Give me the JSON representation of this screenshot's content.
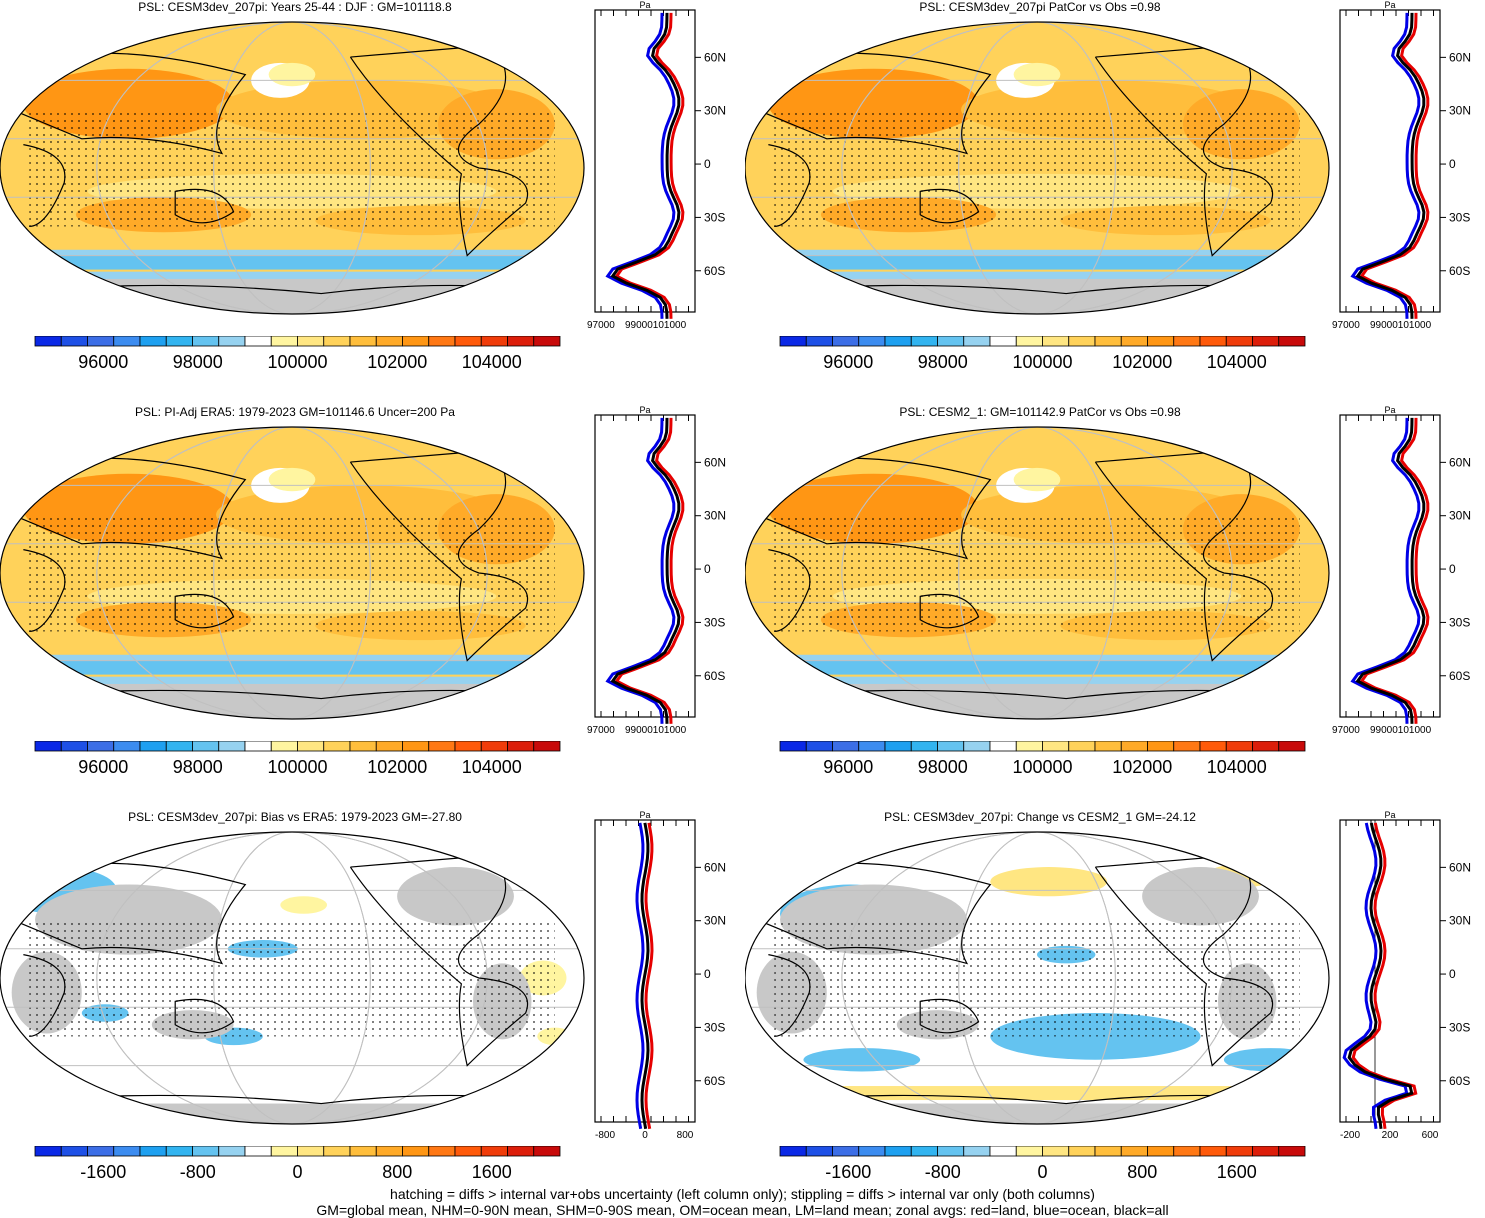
{
  "chart_data": [
    {
      "type": "heatmap",
      "title": "PSL: CESM3dev_207pi: Years 25-44 : DJF : GM=101118.8",
      "colorbar_ticks": [
        "96000",
        "98000",
        "100000",
        "102000",
        "104000"
      ],
      "zonal_axis_lat": [
        "60N",
        "30N",
        "0",
        "30S",
        "60S"
      ],
      "zonal_axis_x": [
        "97000",
        "99000101000"
      ],
      "zonal_axis_unit": "Pa",
      "zonal_kind": "abs",
      "zonal_xlim": [
        97000,
        103000
      ]
    },
    {
      "type": "heatmap",
      "title": "PSL: CESM3dev_207pi PatCor vs Obs =0.98",
      "colorbar_ticks": [
        "96000",
        "98000",
        "100000",
        "102000",
        "104000"
      ],
      "zonal_axis_lat": [
        "60N",
        "30N",
        "0",
        "30S",
        "60S"
      ],
      "zonal_axis_x": [
        "97000",
        "99000101000"
      ],
      "zonal_axis_unit": "Pa",
      "zonal_kind": "abs",
      "zonal_xlim": [
        97000,
        103000
      ]
    },
    {
      "type": "heatmap",
      "title": "PSL: PI-Adj ERA5: 1979-2023 GM=101146.6 Uncer=200 Pa",
      "colorbar_ticks": [
        "96000",
        "98000",
        "100000",
        "102000",
        "104000"
      ],
      "zonal_axis_lat": [
        "60N",
        "30N",
        "0",
        "30S",
        "60S"
      ],
      "zonal_axis_x": [
        "97000",
        "99000101000"
      ],
      "zonal_axis_unit": "Pa",
      "zonal_kind": "abs",
      "zonal_xlim": [
        97000,
        103000
      ]
    },
    {
      "type": "heatmap",
      "title": "PSL: CESM2_1: GM=101142.9 PatCor vs Obs =0.98",
      "colorbar_ticks": [
        "96000",
        "98000",
        "100000",
        "102000",
        "104000"
      ],
      "zonal_axis_lat": [
        "60N",
        "30N",
        "0",
        "30S",
        "60S"
      ],
      "zonal_axis_x": [
        "97000",
        "99000101000"
      ],
      "zonal_axis_unit": "Pa",
      "zonal_kind": "abs",
      "zonal_xlim": [
        97000,
        103000
      ]
    },
    {
      "type": "heatmap",
      "title": "PSL: CESM3dev_207pi: Bias vs ERA5: 1979-2023 GM=-27.80",
      "colorbar_ticks": [
        "-1600",
        "-800",
        "0",
        "800",
        "1600"
      ],
      "zonal_axis_lat": [
        "60N",
        "30N",
        "0",
        "30S",
        "60S"
      ],
      "zonal_axis_x": [
        "-800",
        "0",
        "800"
      ],
      "zonal_axis_unit": "Pa",
      "zonal_kind": "bias",
      "zonal_xlim": [
        -1000,
        1000
      ]
    },
    {
      "type": "heatmap",
      "title": "PSL: CESM3dev_207pi: Change vs CESM2_1 GM=-24.12",
      "colorbar_ticks": [
        "-1600",
        "-800",
        "0",
        "800",
        "1600"
      ],
      "zonal_axis_lat": [
        "60N",
        "30N",
        "0",
        "30S",
        "60S"
      ],
      "zonal_axis_x": [
        "-200",
        "200",
        "600"
      ],
      "zonal_axis_unit": "Pa",
      "zonal_kind": "change",
      "zonal_xlim": [
        -300,
        700
      ]
    }
  ],
  "colors": {
    "scale": [
      "#0a28e6",
      "#1e50e6",
      "#3c6ee6",
      "#3c8cf0",
      "#1ea0f0",
      "#32b4f0",
      "#64c3f0",
      "#96d2f0",
      "#ffffff",
      "#fff5a0",
      "#ffe682",
      "#ffd25a",
      "#ffbe3c",
      "#ffaa28",
      "#ff9614",
      "#ff7814",
      "#ff5a0a",
      "#f03c0a",
      "#dc1e0a",
      "#c80a0a"
    ],
    "land": "#c8c8c8",
    "line_land": "#e60000",
    "line_ocean": "#0000e6",
    "line_all": "#000000"
  },
  "footer": {
    "line1": "hatching = diffs > internal var+obs uncertainty (left column only); stippling = diffs > internal var only (both columns)",
    "line2": "GM=global mean, NHM=0-90N mean, SHM=0-90S mean, OM=ocean mean, LM=land mean; zonal avgs: red=land, blue=ocean, black=all"
  }
}
